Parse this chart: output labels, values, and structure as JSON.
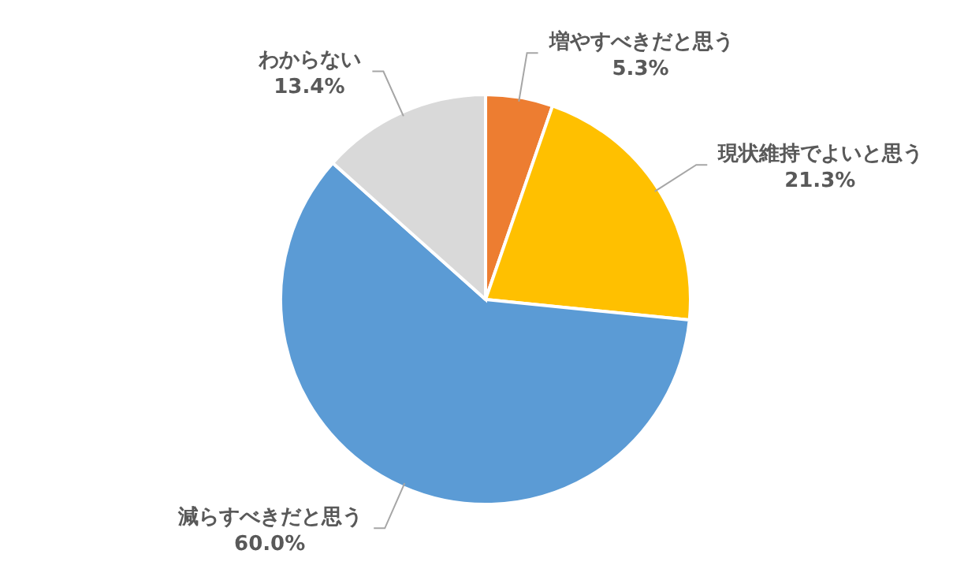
{
  "chart_data": {
    "type": "pie",
    "categories": [
      "増やすべきだと思う",
      "現状維持でよいと思う",
      "減らすべきだと思う",
      "わからない"
    ],
    "values": [
      5.3,
      21.3,
      60.0,
      13.4
    ],
    "colors": [
      "#ed7d31",
      "#ffc000",
      "#5b9bd5",
      "#d9d9d9"
    ],
    "value_labels": [
      "5.3%",
      "21.3%",
      "60.0%",
      "13.4%"
    ]
  }
}
